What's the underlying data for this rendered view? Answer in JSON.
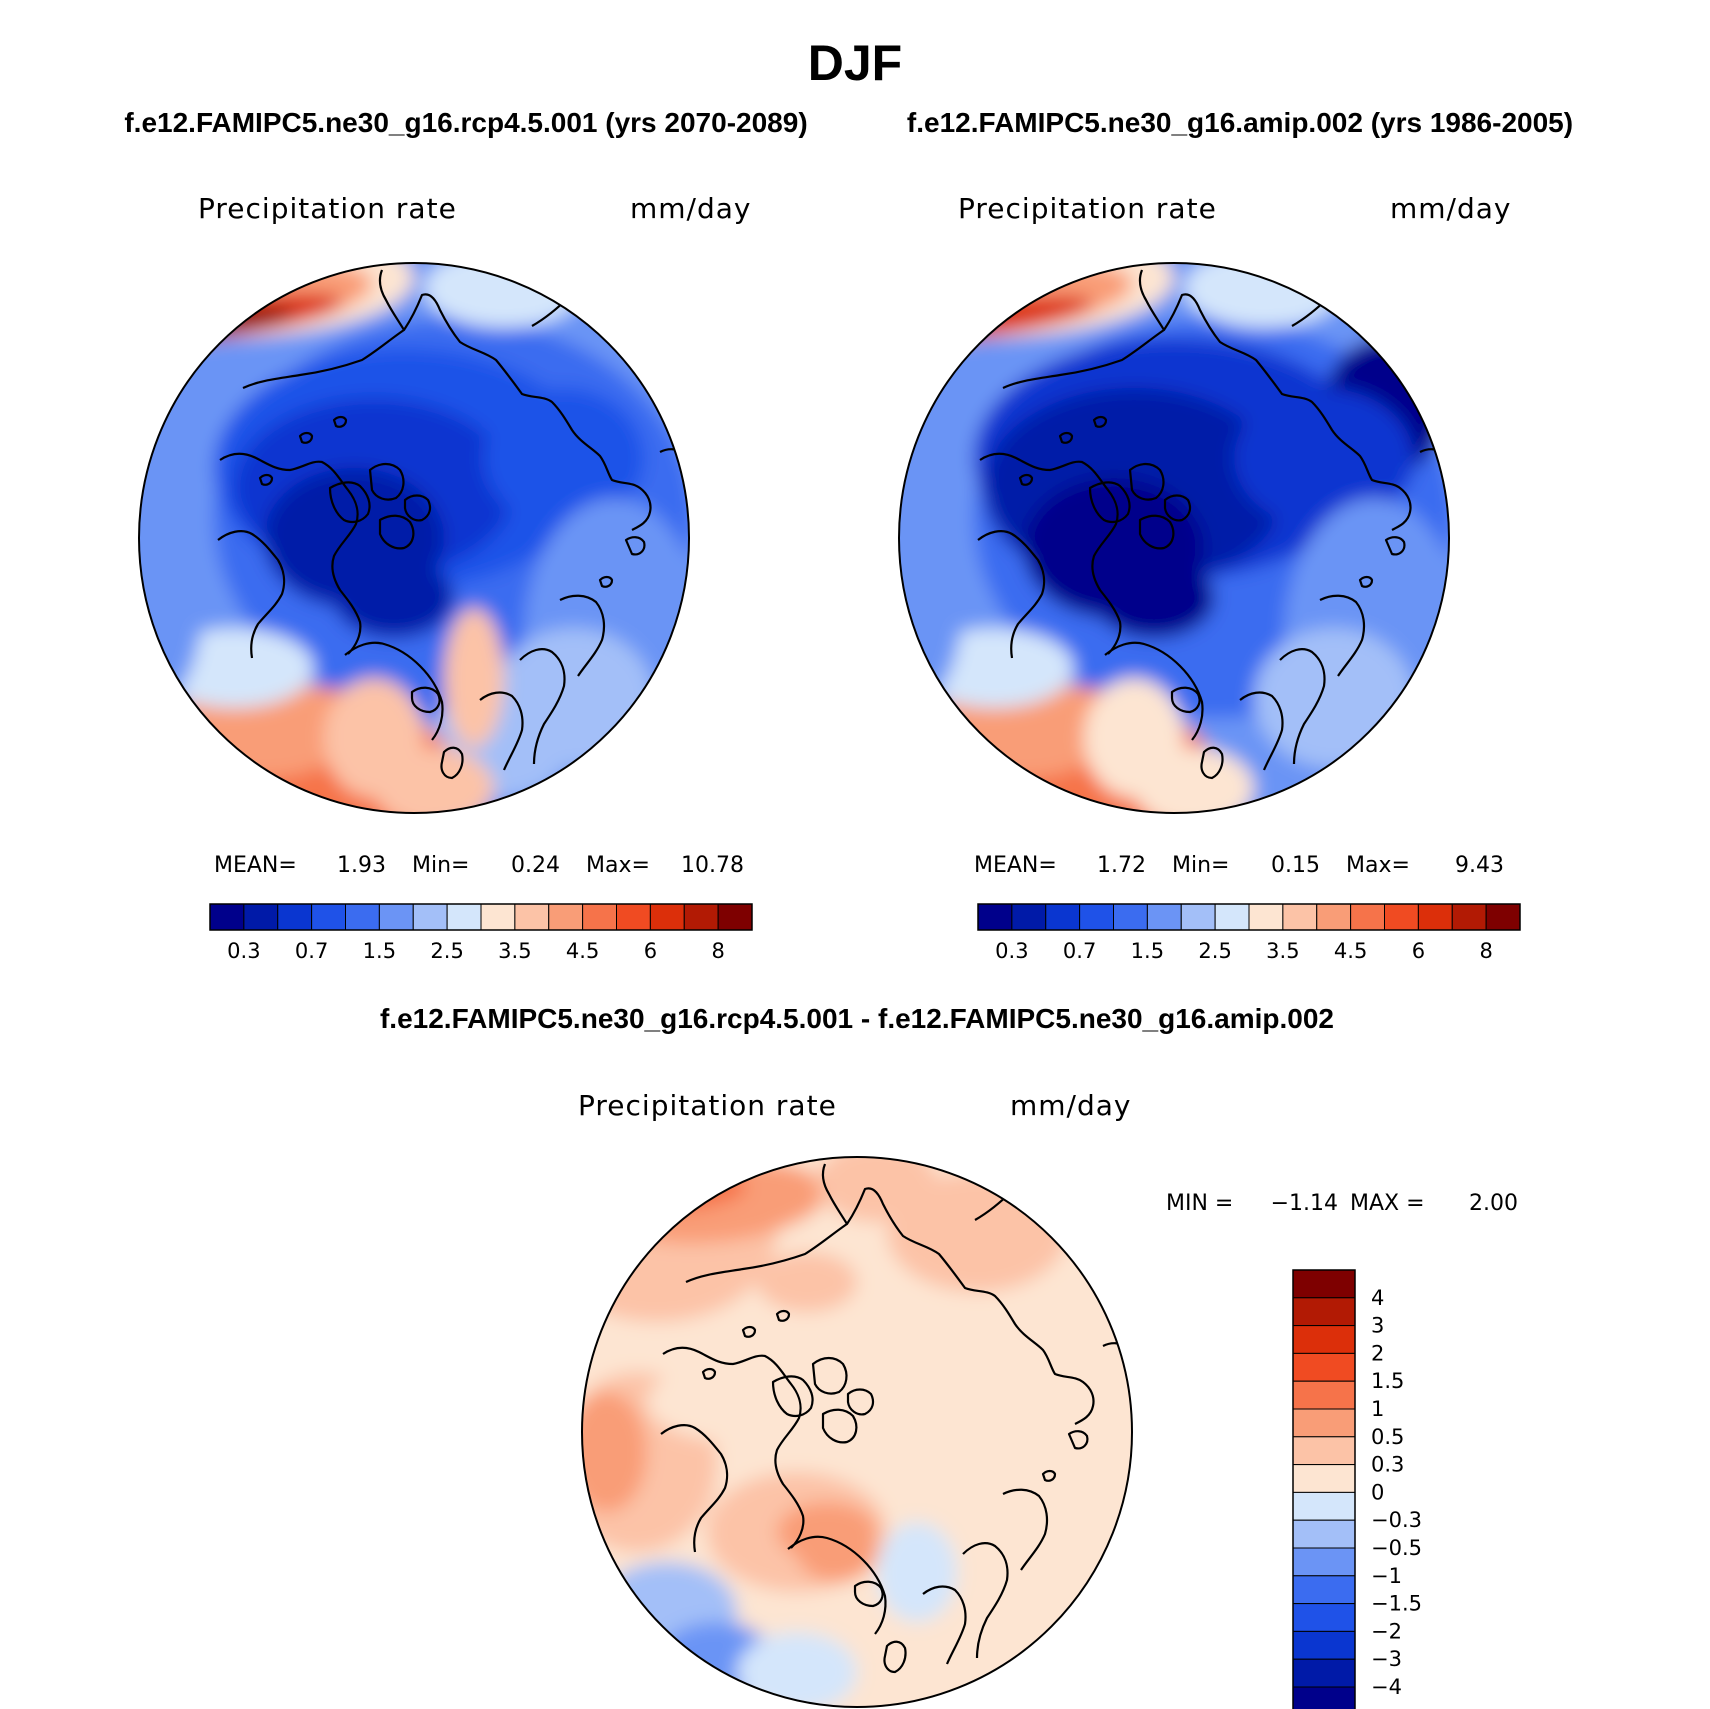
{
  "chart_data": {
    "type": "heatmap",
    "title": "DJF",
    "panels": [
      {
        "id": "rcp",
        "case_title": "f.e12.FAMIPC5.ne30_g16.rcp4.5.001 (yrs 2070-2089)",
        "variable": "Precipitation rate",
        "units": "mm/day",
        "stats": [
          {
            "label": "MEAN=",
            "value": "1.93"
          },
          {
            "label": "Min=",
            "value": "0.24"
          },
          {
            "label": "Max=",
            "value": "10.78"
          }
        ],
        "contour_levels": [
          0.2,
          0.3,
          0.5,
          0.7,
          1,
          1.5,
          2,
          2.5,
          3,
          3.5,
          4,
          4.5,
          5,
          6,
          7,
          8
        ],
        "tick_labels": [
          "0.3",
          "0.7",
          "1.5",
          "2.5",
          "3.5",
          "4.5",
          "6",
          "8"
        ]
      },
      {
        "id": "amip",
        "case_title": "f.e12.FAMIPC5.ne30_g16.amip.002 (yrs 1986-2005)",
        "variable": "Precipitation rate",
        "units": "mm/day",
        "stats": [
          {
            "label": "MEAN=",
            "value": "1.72"
          },
          {
            "label": "Min=",
            "value": "0.15"
          },
          {
            "label": "Max=",
            "value": "9.43"
          }
        ],
        "contour_levels": [
          0.2,
          0.3,
          0.5,
          0.7,
          1,
          1.5,
          2,
          2.5,
          3,
          3.5,
          4,
          4.5,
          5,
          6,
          7,
          8
        ],
        "tick_labels": [
          "0.3",
          "0.7",
          "1.5",
          "2.5",
          "3.5",
          "4.5",
          "6",
          "8"
        ]
      },
      {
        "id": "diff",
        "case_title": "f.e12.FAMIPC5.ne30_g16.rcp4.5.001 - f.e12.FAMIPC5.ne30_g16.amip.002",
        "variable": "Precipitation rate",
        "units": "mm/day",
        "stats_line": {
          "min_label": "MIN =",
          "min_value": "−1.14",
          "max_label": "MAX =",
          "max_value": "2.00"
        },
        "contour_levels": [
          -4,
          -3,
          -2,
          -1.5,
          -1,
          -0.5,
          -0.3,
          0,
          0.3,
          0.5,
          1,
          1.5,
          2,
          3,
          4
        ],
        "tick_labels": [
          "4",
          "3",
          "2",
          "1.5",
          "1",
          "0.5",
          "0.3",
          "0",
          "−0.3",
          "−0.5",
          "−1",
          "−1.5",
          "−2",
          "−3",
          "−4"
        ]
      }
    ],
    "colormap": {
      "abs": [
        "#00008b",
        "#001aa8",
        "#0a36d0",
        "#1f52e8",
        "#3b6cf0",
        "#6b94f5",
        "#a3bff8",
        "#d4e6fb",
        "#fde5d2",
        "#fcc3a7",
        "#f99d77",
        "#f6734a",
        "#f04b22",
        "#dc2f0a",
        "#b21a04",
        "#7e0000"
      ],
      "diff": [
        "#7e0000",
        "#b21a04",
        "#dc2f0a",
        "#f04b22",
        "#f6734a",
        "#f99d77",
        "#fcc3a7",
        "#fde5d2",
        "#d4e6fb",
        "#a3bff8",
        "#6b94f5",
        "#3b6cf0",
        "#1f52e8",
        "#0a36d0",
        "#001aa8",
        "#00008b"
      ]
    }
  }
}
